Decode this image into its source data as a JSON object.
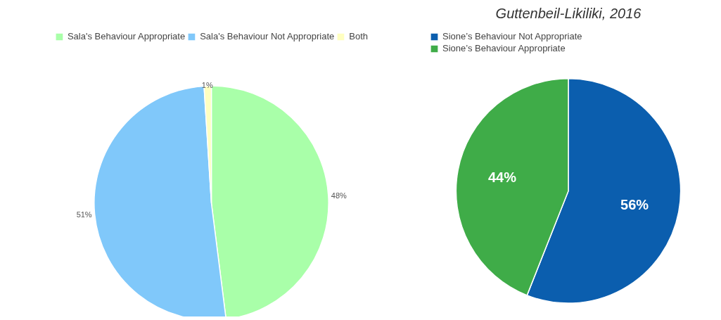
{
  "chart_data": [
    {
      "type": "pie",
      "categories": [
        "Sala's Behaviour Appropriate",
        "Sala's Behaviour Not Appropriate",
        "Both"
      ],
      "values": [
        48,
        51,
        1
      ],
      "colors": [
        "#a9ffa9",
        "#80c8fa",
        "#ffffc0"
      ],
      "value_labels": [
        "48%",
        "51%",
        "1%"
      ],
      "legend": "top"
    },
    {
      "type": "pie",
      "title": "Guttenbeil-Likiliki, 2016",
      "categories": [
        "Sione’s Behaviour Not Appropriate",
        "Sione’s Behaviour Appropriate"
      ],
      "values": [
        56,
        44
      ],
      "colors": [
        "#0b5eae",
        "#3fac48"
      ],
      "value_labels": [
        "56%",
        "44%"
      ],
      "legend": "top left"
    }
  ]
}
